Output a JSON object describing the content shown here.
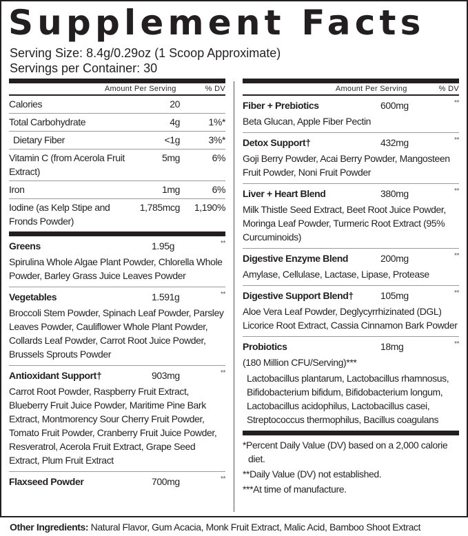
{
  "title": "Supplement Facts",
  "serving_size": {
    "label": "Serving Size:",
    "value": "8.4g/0.29oz (1 Scoop Approximate)"
  },
  "servings_per_container": {
    "label": "Servings per Container:",
    "value": "30"
  },
  "table_header": {
    "amount": "Amount Per Serving",
    "dv": "% DV"
  },
  "nutrients": [
    {
      "name": "Calories",
      "amount": "20",
      "dv": ""
    },
    {
      "name": "Total Carbohydrate",
      "amount": "4g",
      "dv": "1%*"
    },
    {
      "name": "Dietary Fiber",
      "amount": "<1g",
      "dv": "3%*",
      "indent": true
    },
    {
      "name": "Vitamin C (from Acerola Fruit Extract)",
      "amount": "5mg",
      "dv": "6%"
    },
    {
      "name": "Iron",
      "amount": "1mg",
      "dv": "6%"
    },
    {
      "name": "Iodine (as Kelp Stipe and Fronds Powder)",
      "amount": "1,785mcg",
      "dv": "1,190%"
    }
  ],
  "left_blends": [
    {
      "name": "Greens",
      "amount": "1.95g",
      "dv": "**",
      "ingredients": "Spirulina Whole Algae Plant Powder, Chlorella Whole Powder, Barley Grass Juice Leaves Powder"
    },
    {
      "name": "Vegetables",
      "amount": "1.591g",
      "dv": "**",
      "ingredients": "Broccoli Stem Powder, Spinach Leaf Powder, Parsley Leaves Powder, Cauliflower Whole Plant Powder, Collards Leaf Powder, Carrot Root Juice Powder, Brussels Sprouts Powder"
    },
    {
      "name": "Antioxidant Support†",
      "amount": "903mg",
      "dv": "**",
      "ingredients": "Carrot Root Powder, Raspberry Fruit Extract, Blueberry Fruit Juice Powder, Maritime Pine Bark Extract, Montmorency Sour Cherry Fruit Powder, Tomato Fruit Powder, Cranberry Fruit Juice Powder, Resveratrol, Acerola Fruit Extract, Grape Seed Extract, Plum Fruit Extract"
    },
    {
      "name": "Flaxseed Powder",
      "amount": "700mg",
      "dv": "**",
      "ingredients": ""
    }
  ],
  "right_blends": [
    {
      "name": "Fiber + Prebiotics",
      "amount": "600mg",
      "dv": "**",
      "ingredients": "Beta Glucan, Apple Fiber Pectin"
    },
    {
      "name": "Detox Support†",
      "amount": "432mg",
      "dv": "**",
      "ingredients": "Goji Berry Powder, Acai Berry Powder, Mangosteen Fruit Powder, Noni Fruit Powder"
    },
    {
      "name": "Liver + Heart Blend",
      "amount": "380mg",
      "dv": "**",
      "ingredients": "Milk Thistle Seed Extract, Beet Root Juice Powder, Moringa Leaf Powder, Turmeric Root Extract (95% Curcuminoids)"
    },
    {
      "name": "Digestive Enzyme Blend",
      "amount": "200mg",
      "dv": "**",
      "ingredients": "Amylase, Cellulase, Lactase, Lipase, Protease"
    },
    {
      "name": "Digestive Support Blend†",
      "amount": "105mg",
      "dv": "**",
      "ingredients": "Aloe Vera Leaf Powder, Deglycyrrhizinated (DGL) Licorice Root Extract, Cassia Cinnamon Bark Powder"
    },
    {
      "name": "Probiotics",
      "amount": "18mg",
      "dv": "**",
      "subtitle": "(180 Million CFU/Serving)***",
      "ingredients": "Lactobacillus plantarum, Lactobacillus rhamnosus, Bifidobacterium bifidum, Bifidobacterium longum, Lactobacillus acidophilus, Lactobacillus casei, Streptococcus thermophilus, Bacillus coagulans"
    }
  ],
  "footnotes": [
    "*Percent Daily Value (DV) based on a 2,000 calorie diet.",
    "**Daily Value (DV) not established.",
    "***At time of manufacture."
  ],
  "other_ingredients": {
    "label": "Other Ingredients:",
    "value": "Natural Flavor, Gum Acacia, Monk Fruit Extract, Malic Acid, Bamboo Shoot Extract"
  }
}
